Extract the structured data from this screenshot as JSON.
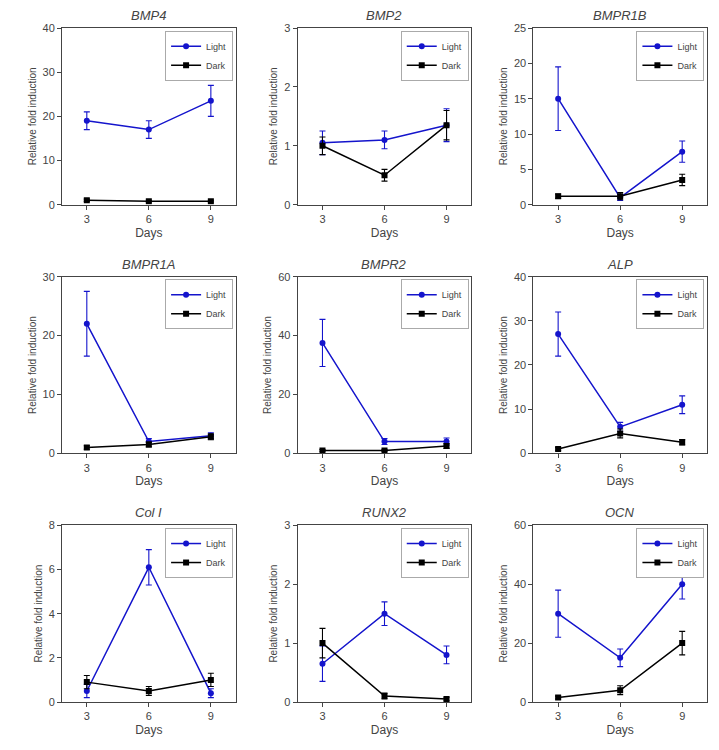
{
  "chart_data": [
    {
      "type": "line",
      "title": "BMP4",
      "xlabel": "Days",
      "ylabel": "Relative fold induction",
      "x": [
        3,
        6,
        9
      ],
      "xlim": [
        1.8,
        10.2
      ],
      "xticks": [
        3,
        6,
        9
      ],
      "ylim": [
        0,
        40
      ],
      "yticks": [
        0,
        10,
        20,
        30,
        40
      ],
      "grid": false,
      "legend": "upper right",
      "series": [
        {
          "name": "Light",
          "color": "#1414CC",
          "marker": "circle",
          "values": [
            19.0,
            17.0,
            23.5
          ],
          "errors": [
            2.0,
            2.0,
            3.5
          ]
        },
        {
          "name": "Dark",
          "color": "#000000",
          "marker": "square",
          "values": [
            1.0,
            0.8,
            0.8
          ],
          "errors": [
            0.25,
            0.2,
            0.2
          ]
        }
      ]
    },
    {
      "type": "line",
      "title": "BMP2",
      "xlabel": "Days",
      "ylabel": "Relative fold induction",
      "x": [
        3,
        6,
        9
      ],
      "xlim": [
        1.8,
        10.2
      ],
      "xticks": [
        3,
        6,
        9
      ],
      "ylim": [
        0,
        3
      ],
      "yticks": [
        0,
        1,
        2,
        3
      ],
      "grid": false,
      "legend": "upper right",
      "series": [
        {
          "name": "Light",
          "color": "#1414CC",
          "marker": "circle",
          "values": [
            1.05,
            1.1,
            1.35
          ],
          "errors": [
            0.2,
            0.15,
            0.28
          ]
        },
        {
          "name": "Dark",
          "color": "#000000",
          "marker": "square",
          "values": [
            1.0,
            0.5,
            1.35
          ],
          "errors": [
            0.15,
            0.1,
            0.25
          ]
        }
      ]
    },
    {
      "type": "line",
      "title": "BMPR1B",
      "xlabel": "Days",
      "ylabel": "Relative fold induction",
      "x": [
        3,
        6,
        9
      ],
      "xlim": [
        1.8,
        10.2
      ],
      "xticks": [
        3,
        6,
        9
      ],
      "ylim": [
        0,
        25
      ],
      "yticks": [
        0,
        5,
        10,
        15,
        20,
        25
      ],
      "grid": false,
      "legend": "upper right",
      "series": [
        {
          "name": "Light",
          "color": "#1414CC",
          "marker": "circle",
          "values": [
            15.0,
            1.0,
            7.5
          ],
          "errors": [
            4.5,
            0.4,
            1.5
          ]
        },
        {
          "name": "Dark",
          "color": "#000000",
          "marker": "square",
          "values": [
            1.2,
            1.2,
            3.5
          ],
          "errors": [
            0.3,
            0.5,
            0.8
          ]
        }
      ]
    },
    {
      "type": "line",
      "title": "BMPR1A",
      "xlabel": "Days",
      "ylabel": "Relative fold induction",
      "x": [
        3,
        6,
        9
      ],
      "xlim": [
        1.8,
        10.2
      ],
      "xticks": [
        3,
        6,
        9
      ],
      "ylim": [
        0,
        30
      ],
      "yticks": [
        0,
        10,
        20,
        30
      ],
      "grid": false,
      "legend": "upper right",
      "series": [
        {
          "name": "Light",
          "color": "#1414CC",
          "marker": "circle",
          "values": [
            22.0,
            2.0,
            3.0
          ],
          "errors": [
            5.5,
            0.5,
            0.5
          ]
        },
        {
          "name": "Dark",
          "color": "#000000",
          "marker": "square",
          "values": [
            1.0,
            1.5,
            2.8
          ],
          "errors": [
            0.3,
            0.4,
            0.5
          ]
        }
      ]
    },
    {
      "type": "line",
      "title": "BMPR2",
      "xlabel": "Days",
      "ylabel": "Relative fold induction",
      "x": [
        3,
        6,
        9
      ],
      "xlim": [
        1.8,
        10.2
      ],
      "xticks": [
        3,
        6,
        9
      ],
      "ylim": [
        0,
        60
      ],
      "yticks": [
        0,
        20,
        40,
        60
      ],
      "grid": false,
      "legend": "upper right",
      "series": [
        {
          "name": "Light",
          "color": "#1414CC",
          "marker": "circle",
          "values": [
            37.5,
            4.0,
            4.0
          ],
          "errors": [
            8.0,
            1.0,
            1.2
          ]
        },
        {
          "name": "Dark",
          "color": "#000000",
          "marker": "square",
          "values": [
            1.0,
            1.0,
            2.5
          ],
          "errors": [
            0.3,
            0.3,
            0.8
          ]
        }
      ]
    },
    {
      "type": "line",
      "title": "ALP",
      "xlabel": "Days",
      "ylabel": "Relative fold induction",
      "x": [
        3,
        6,
        9
      ],
      "xlim": [
        1.8,
        10.2
      ],
      "xticks": [
        3,
        6,
        9
      ],
      "ylim": [
        0,
        40
      ],
      "yticks": [
        0,
        10,
        20,
        30,
        40
      ],
      "grid": false,
      "legend": "upper right",
      "series": [
        {
          "name": "Light",
          "color": "#1414CC",
          "marker": "circle",
          "values": [
            27.0,
            6.0,
            11.0
          ],
          "errors": [
            5.0,
            1.0,
            2.0
          ]
        },
        {
          "name": "Dark",
          "color": "#000000",
          "marker": "square",
          "values": [
            1.0,
            4.5,
            2.5
          ],
          "errors": [
            0.3,
            1.0,
            0.6
          ]
        }
      ]
    },
    {
      "type": "line",
      "title": "Col I",
      "xlabel": "Days",
      "ylabel": "Relative fold induction",
      "x": [
        3,
        6,
        9
      ],
      "xlim": [
        1.8,
        10.2
      ],
      "xticks": [
        3,
        6,
        9
      ],
      "ylim": [
        0,
        8
      ],
      "yticks": [
        0,
        2,
        4,
        6,
        8
      ],
      "grid": false,
      "legend": "upper right",
      "series": [
        {
          "name": "Light",
          "color": "#1414CC",
          "marker": "circle",
          "values": [
            0.5,
            6.1,
            0.4
          ],
          "errors": [
            0.3,
            0.8,
            0.2
          ]
        },
        {
          "name": "Dark",
          "color": "#000000",
          "marker": "square",
          "values": [
            0.9,
            0.5,
            1.0
          ],
          "errors": [
            0.3,
            0.2,
            0.3
          ]
        }
      ]
    },
    {
      "type": "line",
      "title": "RUNX2",
      "xlabel": "Days",
      "ylabel": "Relative fold induction",
      "x": [
        3,
        6,
        9
      ],
      "xlim": [
        1.8,
        10.2
      ],
      "xticks": [
        3,
        6,
        9
      ],
      "ylim": [
        0,
        3
      ],
      "yticks": [
        0,
        1,
        2,
        3
      ],
      "grid": false,
      "legend": "upper right",
      "series": [
        {
          "name": "Light",
          "color": "#1414CC",
          "marker": "circle",
          "values": [
            0.65,
            1.5,
            0.8
          ],
          "errors": [
            0.3,
            0.2,
            0.15
          ]
        },
        {
          "name": "Dark",
          "color": "#000000",
          "marker": "square",
          "values": [
            1.0,
            0.1,
            0.05
          ],
          "errors": [
            0.25,
            0.05,
            0.03
          ]
        }
      ]
    },
    {
      "type": "line",
      "title": "OCN",
      "xlabel": "Days",
      "ylabel": "Relative fold induction",
      "x": [
        3,
        6,
        9
      ],
      "xlim": [
        1.8,
        10.2
      ],
      "xticks": [
        3,
        6,
        9
      ],
      "ylim": [
        0,
        60
      ],
      "yticks": [
        0,
        20,
        40,
        60
      ],
      "grid": false,
      "legend": "upper right",
      "series": [
        {
          "name": "Light",
          "color": "#1414CC",
          "marker": "circle",
          "values": [
            30.0,
            15.0,
            40.0
          ],
          "errors": [
            8.0,
            3.0,
            5.0
          ]
        },
        {
          "name": "Dark",
          "color": "#000000",
          "marker": "square",
          "values": [
            1.5,
            4.0,
            20.0
          ],
          "errors": [
            0.5,
            1.5,
            4.0
          ]
        }
      ]
    }
  ]
}
